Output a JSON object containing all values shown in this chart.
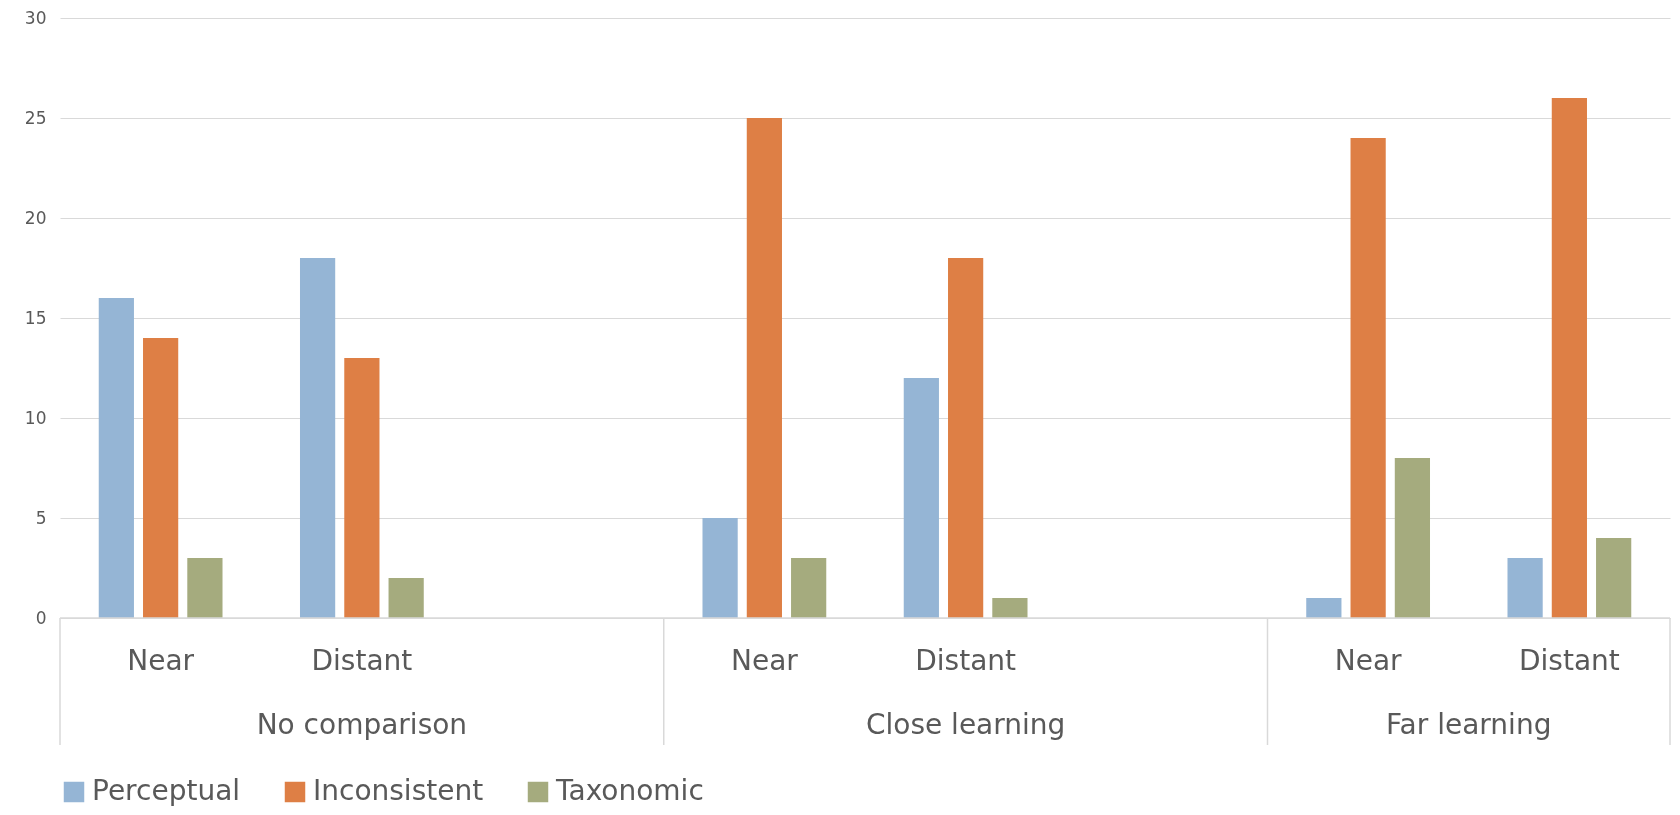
{
  "chart_data": {
    "type": "bar",
    "categories": [
      "Near",
      "Distant",
      null,
      "Near",
      "Distant",
      null,
      "Near",
      "Distant"
    ],
    "series": [
      {
        "name": "Perceptual",
        "color": "#95b5d5",
        "values": [
          16,
          18,
          null,
          5,
          12,
          null,
          1,
          3
        ]
      },
      {
        "name": "Inconsistent",
        "color": "#de7f45",
        "values": [
          14,
          13,
          null,
          25,
          18,
          null,
          24,
          26
        ]
      },
      {
        "name": "Taxonomic",
        "color": "#a5ab7e",
        "values": [
          3,
          2,
          null,
          3,
          1,
          null,
          8,
          4
        ]
      }
    ],
    "annotations": [
      "No comparison",
      "Close learning",
      "Far learning"
    ],
    "ylim": [
      0,
      30
    ],
    "yticks": [
      0,
      5,
      10,
      15,
      20,
      25,
      30
    ],
    "grid": "y",
    "legend": "bottom"
  }
}
